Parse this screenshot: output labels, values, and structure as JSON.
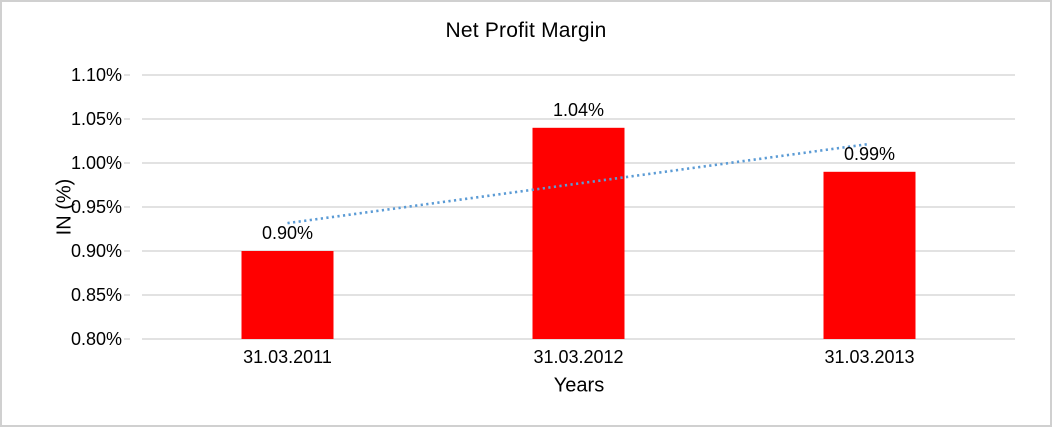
{
  "chart_data": {
    "type": "bar",
    "title": "Net Profit Margin",
    "xlabel": "Years",
    "ylabel": "IN (%)",
    "categories": [
      "31.03.2011",
      "31.03.2012",
      "31.03.2013"
    ],
    "values": [
      0.9,
      1.04,
      0.99
    ],
    "data_labels": [
      "0.90%",
      "1.04%",
      "0.99%"
    ],
    "ylim": [
      0.8,
      1.1
    ],
    "ytick_step": 0.05,
    "ytick_labels": [
      "0.80%",
      "0.85%",
      "0.90%",
      "0.95%",
      "1.00%",
      "1.05%",
      "1.10%"
    ],
    "grid": true,
    "legend": "none",
    "bar_color": "#FF0000",
    "gridline_color": "#D9D9D9",
    "text_color": "#000000",
    "frame_border_color": "#D0D0D0",
    "trendline": {
      "type": "linear",
      "style": "dotted",
      "color": "#5B9BD5"
    }
  }
}
